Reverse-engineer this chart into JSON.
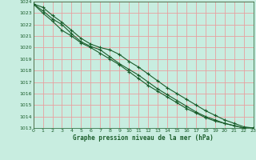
{
  "x": [
    0,
    1,
    2,
    3,
    4,
    5,
    6,
    7,
    8,
    9,
    10,
    11,
    12,
    13,
    14,
    15,
    16,
    17,
    18,
    19,
    20,
    21,
    22,
    23
  ],
  "line1": [
    1023.8,
    1023.5,
    1022.8,
    1022.2,
    1021.5,
    1020.8,
    1020.3,
    1020.0,
    1019.8,
    1019.4,
    1018.8,
    1018.3,
    1017.7,
    1017.1,
    1016.5,
    1016.0,
    1015.5,
    1015.0,
    1014.5,
    1014.1,
    1013.7,
    1013.4,
    1013.1,
    1013.0
  ],
  "line2": [
    1023.8,
    1023.2,
    1022.5,
    1022.0,
    1021.2,
    1020.5,
    1020.1,
    1019.8,
    1019.2,
    1018.6,
    1018.1,
    1017.6,
    1017.0,
    1016.4,
    1015.9,
    1015.4,
    1014.9,
    1014.4,
    1014.0,
    1013.7,
    1013.4,
    1013.2,
    1013.0,
    1013.0
  ],
  "line3": [
    1023.8,
    1023.0,
    1022.3,
    1021.5,
    1021.0,
    1020.4,
    1020.0,
    1019.5,
    1019.0,
    1018.5,
    1017.9,
    1017.3,
    1016.7,
    1016.2,
    1015.7,
    1015.2,
    1014.7,
    1014.3,
    1013.9,
    1013.6,
    1013.4,
    1013.2,
    1013.0,
    1013.0
  ],
  "bg_color": "#c8ede0",
  "plot_bg_color": "#c8ede0",
  "grid_color": "#e8a0a0",
  "line_color": "#1a5c2a",
  "marker": "+",
  "xlabel": "Graphe pression niveau de la mer (hPa)",
  "ylim_min": 1013,
  "ylim_max": 1024,
  "xlim_min": 0,
  "xlim_max": 23
}
